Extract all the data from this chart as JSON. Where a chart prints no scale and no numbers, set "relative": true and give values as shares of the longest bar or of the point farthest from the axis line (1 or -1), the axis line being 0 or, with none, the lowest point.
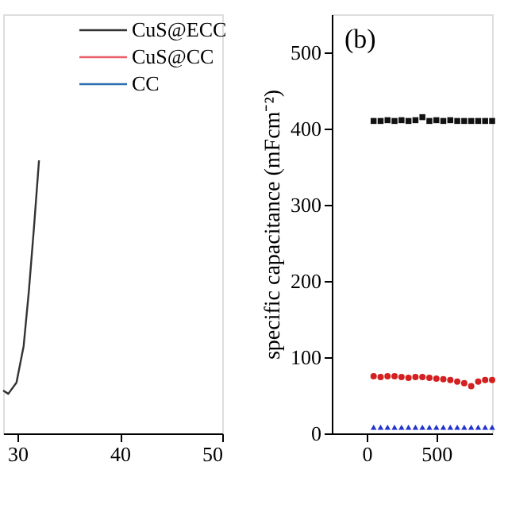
{
  "chart_data": [
    {
      "type": "line",
      "relative": true,
      "xlim": [
        28.6,
        50
      ],
      "xticks": [
        30,
        40,
        50
      ],
      "tick_labels": "x",
      "legend": "top right",
      "grid": false,
      "marker": "none",
      "series": [
        {
          "name": "CuS@ECC",
          "color": "#333333",
          "line_style": "solid",
          "x": [
            28.6,
            29.1,
            29.9,
            30.6,
            31.1,
            31.6,
            32.1
          ],
          "values": [
            0.157,
            0.145,
            0.186,
            0.32,
            0.517,
            0.75,
            1
          ]
        },
        {
          "name": "CuS@CC",
          "color": "#e8606a"
        },
        {
          "name": "CC",
          "color": "#2e6fb0"
        }
      ]
    },
    {
      "type": "scatter",
      "ylabel": "specific capacitance (mFcm⁻²)",
      "xlim": [
        -250,
        900
      ],
      "xticks": [
        0,
        500
      ],
      "ylim": [
        0,
        550
      ],
      "yticks": [
        0,
        100,
        200,
        300,
        400,
        500
      ],
      "grid": false,
      "annotations": [
        "(b)"
      ],
      "x": [
        50,
        100,
        150,
        200,
        250,
        300,
        350,
        400,
        450,
        500,
        550,
        600,
        650,
        700,
        750,
        800,
        850,
        900
      ],
      "series": [
        {
          "color": "#111111",
          "marker": "square",
          "values": [
            410,
            410,
            411,
            410,
            411,
            410,
            411,
            415,
            410,
            411,
            410,
            411,
            410,
            410,
            410,
            410,
            410,
            410
          ]
        },
        {
          "color": "#d42020",
          "marker": "circle",
          "values": [
            75,
            74,
            75,
            75,
            74,
            73,
            74,
            74,
            73,
            72,
            71,
            70,
            68,
            66,
            62,
            68,
            70,
            70
          ]
        },
        {
          "color": "#2233cc",
          "marker": "triangle",
          "values": [
            8,
            8,
            8,
            8,
            8,
            8,
            8,
            8,
            8,
            8,
            8,
            8,
            8,
            8,
            8,
            8,
            8,
            8
          ]
        }
      ]
    }
  ]
}
